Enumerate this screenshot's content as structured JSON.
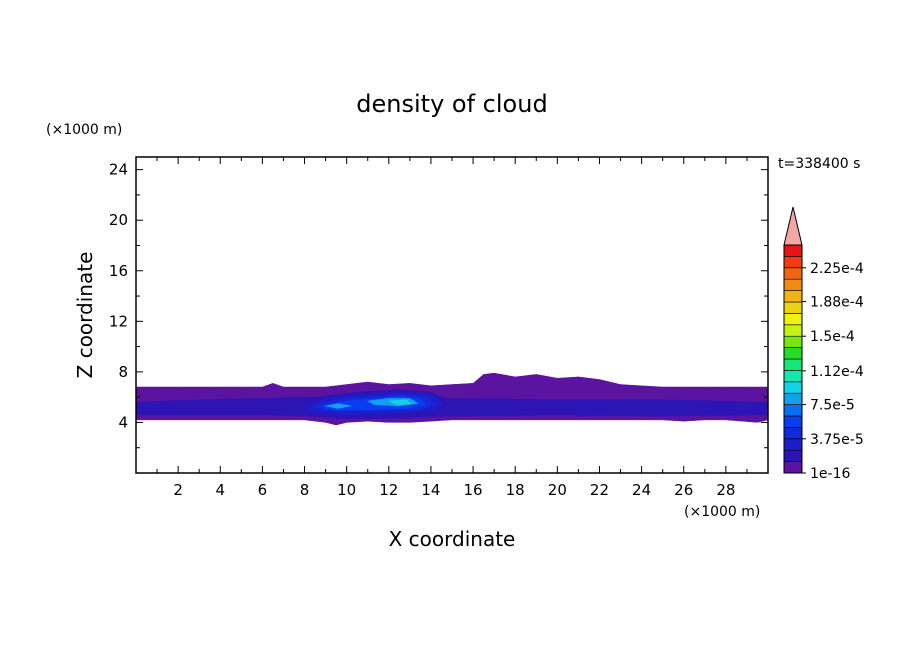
{
  "chart_data": {
    "type": "heatmap",
    "title": "density of cloud",
    "xlabel": "X coordinate",
    "ylabel": "Z coordinate",
    "x_unit": "(×1000 m)",
    "y_unit": "(×1000 m)",
    "time_label": "t=338400 s",
    "xlim": [
      0,
      30
    ],
    "ylim": [
      0,
      25
    ],
    "x_ticks": [
      2,
      4,
      6,
      8,
      10,
      12,
      14,
      16,
      18,
      20,
      22,
      24,
      26,
      28
    ],
    "y_ticks": [
      4,
      8,
      12,
      16,
      20,
      24
    ],
    "x_tick_labels": [
      "2",
      "4",
      "6",
      "8",
      "10",
      "12",
      "14",
      "16",
      "18",
      "20",
      "22",
      "24",
      "26",
      "28"
    ],
    "y_tick_labels": [
      "4",
      "8",
      "12",
      "16",
      "20",
      "24"
    ],
    "colorbar": {
      "colors": [
        "#5a14a0",
        "#2d14b4",
        "#1e1ec8",
        "#1428dc",
        "#0a3cf0",
        "#0a6ef0",
        "#14a0f0",
        "#14d2e6",
        "#14e6b4",
        "#14e678",
        "#28dc28",
        "#78e614",
        "#c8f014",
        "#f0f014",
        "#f0d214",
        "#f0b414",
        "#f08c14",
        "#f06414",
        "#f03c14",
        "#e61414"
      ],
      "over_color": "#f4a6a6",
      "labels": [
        "1e-16",
        "3.75e-5",
        "7.5e-5",
        "1.12e-4",
        "1.5e-4",
        "1.88e-4",
        "2.25e-4"
      ],
      "label_values": [
        0,
        3.75e-05,
        7.5e-05,
        0.000112,
        0.00015,
        0.000188,
        0.000225
      ],
      "min": 0,
      "max": 0.00025
    },
    "regions": [
      {
        "level": 0,
        "x": [
          0.0,
          0.5,
          1.0,
          2.0,
          3.5,
          5.0,
          6.0,
          6.5,
          7.0,
          8.0,
          9.0,
          10.0,
          11.0,
          12.0,
          13.0,
          14.0,
          15.0,
          16.0,
          16.5,
          17.0,
          18.0,
          19.0,
          20.0,
          21.0,
          22.0,
          23.0,
          24.0,
          25.0,
          26.0,
          27.0,
          28.0,
          29.0,
          30.0,
          30.0,
          29.5,
          28.0,
          27.0,
          26.0,
          25.0,
          24.0,
          23.0,
          22.0,
          21.0,
          20.0,
          19.0,
          18.0,
          17.0,
          16.0,
          15.0,
          14.0,
          13.0,
          12.0,
          11.0,
          10.0,
          9.5,
          9.0,
          8.0,
          7.0,
          6.0,
          5.0,
          4.0,
          3.0,
          2.0,
          1.0,
          0.0
        ],
        "z": [
          6.8,
          6.8,
          6.8,
          6.8,
          6.8,
          6.8,
          6.8,
          7.1,
          6.8,
          6.8,
          6.8,
          7.0,
          7.2,
          7.0,
          7.1,
          6.9,
          7.0,
          7.1,
          7.8,
          7.9,
          7.6,
          7.8,
          7.5,
          7.6,
          7.4,
          7.0,
          6.9,
          6.8,
          6.8,
          6.8,
          6.8,
          6.8,
          6.8,
          4.2,
          4.0,
          4.2,
          4.2,
          4.1,
          4.2,
          4.2,
          4.2,
          4.2,
          4.2,
          4.2,
          4.2,
          4.2,
          4.2,
          4.2,
          4.2,
          4.1,
          4.0,
          4.0,
          4.1,
          4.0,
          3.8,
          4.0,
          4.2,
          4.2,
          4.2,
          4.2,
          4.2,
          4.2,
          4.2,
          4.2,
          4.2
        ]
      },
      {
        "level": 1,
        "x": [
          0.0,
          3.0,
          6.0,
          8.0,
          11.0,
          15.0,
          20.0,
          25.0,
          30.0,
          30.0,
          25.0,
          20.0,
          15.0,
          11.0,
          8.0,
          6.0,
          3.0,
          0.0
        ],
        "z": [
          5.6,
          5.8,
          5.9,
          6.0,
          6.1,
          5.9,
          5.8,
          5.8,
          5.6,
          4.6,
          4.5,
          4.6,
          4.5,
          4.4,
          4.5,
          4.6,
          4.6,
          4.6
        ]
      },
      {
        "level": 1,
        "x": [
          7.5,
          8.5,
          10.5,
          12.5,
          14.0,
          15.2,
          15.0,
          13.5,
          11.5,
          9.5,
          8.0
        ],
        "z": [
          5.2,
          6.0,
          6.4,
          6.6,
          6.4,
          5.5,
          4.8,
          4.4,
          4.3,
          4.3,
          4.6
        ]
      },
      {
        "level": 1,
        "x": [
          16.5,
          17.5,
          18.5,
          18.0,
          17.0
        ],
        "z": [
          5.0,
          5.4,
          5.0,
          4.5,
          4.6
        ]
      },
      {
        "level": 1,
        "x": [
          20.0,
          21.5,
          23.0,
          22.5,
          21.0
        ],
        "z": [
          5.0,
          5.4,
          5.1,
          4.6,
          4.5
        ]
      },
      {
        "level": 1,
        "x": [
          26.0,
          27.5,
          29.5,
          29.0,
          27.0
        ],
        "z": [
          5.2,
          5.5,
          5.3,
          4.8,
          4.8
        ]
      },
      {
        "level": 2,
        "x": [
          8.0,
          9.0,
          10.5,
          12.5,
          14.0,
          14.6,
          14.0,
          12.0,
          10.0,
          8.5
        ],
        "z": [
          5.2,
          5.9,
          6.2,
          6.4,
          6.2,
          5.5,
          4.9,
          4.7,
          4.6,
          4.8
        ]
      },
      {
        "level": 3,
        "x": [
          8.5,
          9.5,
          11.0,
          12.5,
          13.8,
          14.2,
          13.5,
          11.5,
          9.5,
          8.8
        ],
        "z": [
          5.3,
          5.8,
          6.0,
          6.2,
          6.0,
          5.4,
          5.0,
          4.9,
          4.9,
          5.0
        ]
      },
      {
        "level": 4,
        "x": [
          8.8,
          10.0,
          11.5,
          12.5,
          13.5,
          13.8,
          13.0,
          11.0,
          9.5,
          9.0
        ],
        "z": [
          5.3,
          5.7,
          5.9,
          6.1,
          5.9,
          5.4,
          5.1,
          5.0,
          5.0,
          5.1
        ]
      },
      {
        "level": 6,
        "x": [
          11.0,
          12.0,
          13.0,
          13.4,
          12.5,
          11.3
        ],
        "z": [
          5.7,
          5.9,
          5.9,
          5.5,
          5.3,
          5.4
        ]
      },
      {
        "level": 6,
        "x": [
          9.0,
          9.6,
          10.2,
          9.6
        ],
        "z": [
          5.3,
          5.5,
          5.3,
          5.1
        ]
      },
      {
        "level": 7,
        "x": [
          12.0,
          12.8,
          13.1,
          12.4
        ],
        "z": [
          5.7,
          5.8,
          5.5,
          5.4
        ]
      }
    ]
  }
}
